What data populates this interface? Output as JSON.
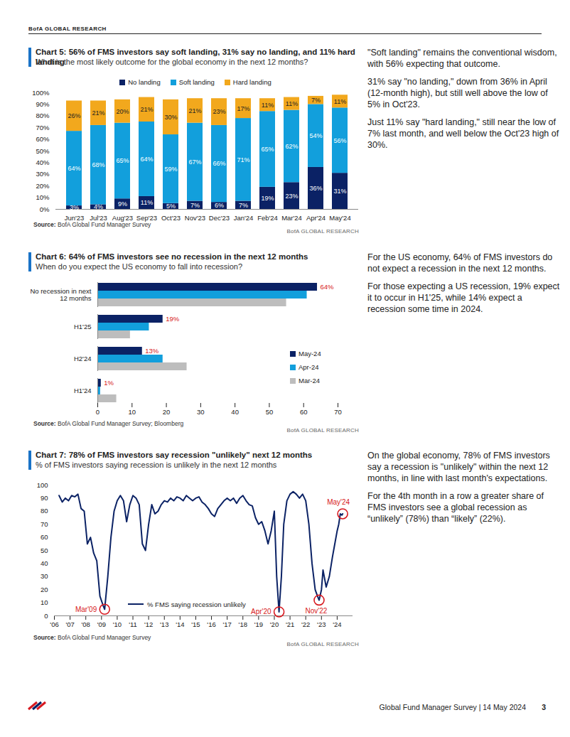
{
  "page": {
    "header": "BofA GLOBAL RESEARCH",
    "footer": "Global Fund Manager Survey | 14 May 2024",
    "page_number": 3,
    "commentary": [
      [
        "\"Soft landing\" remains the conventional wisdom, with 56% expecting that outcome.",
        "31% say \"no landing,\" down from 36% in April (12-month high), but still well above the low of 5% in Oct'23.",
        "Just 11% say \"hard landing,\" still near the low of 7% last month, and well below the Oct'23 high of 30%."
      ],
      [
        "For the US economy, 64% of FMS investors do not expect a recession in the next 12 months.",
        "For those expecting a US recession, 19% expect it to occur in H1'25, while 14% expect a recession some time in 2024."
      ],
      [
        "On the global economy, 78% of FMS investors say a recession is \"unlikely\" within the next 12 months, in line with last month's expectations.",
        "For the 4th month in a row a greater share of FMS investors see a global recession as “unlikely” (78%) than “likely” (22%)."
      ]
    ]
  },
  "chart_data": [
    {
      "type": "bar",
      "stacked": true,
      "title": "Chart 5: 56% of FMS investors say soft landing, 31% say no landing, and 11% hard landing",
      "subtitle": "What is the most likely outcome for the global economy in the next 12 months?",
      "source": "Source: BofA Global Fund Manager Survey",
      "credit": "BofA GLOBAL RESEARCH",
      "legend": "top",
      "data_labels": true,
      "categories": [
        "Jun'23",
        "Jul'23",
        "Aug'23",
        "Sep'23",
        "Oct'23",
        "Nov'23",
        "Dec'23",
        "Jan'24",
        "Feb'24",
        "Mar'24",
        "Apr'24",
        "May'24"
      ],
      "series": [
        {
          "name": "No landing",
          "color": "#0b2265",
          "values": [
            3,
            4,
            9,
            11,
            5,
            7,
            6,
            7,
            19,
            23,
            36,
            31
          ],
          "value_labels": [
            "3%",
            "4%",
            "9%",
            "11%",
            "5%",
            "7%",
            "6%",
            "7%",
            "19%",
            "23%",
            "36%",
            "31%"
          ]
        },
        {
          "name": "Soft landing",
          "color": "#129fdc",
          "values": [
            64,
            68,
            65,
            64,
            59,
            67,
            66,
            71,
            65,
            62,
            54,
            56
          ],
          "value_labels": [
            "64%",
            "68%",
            "65%",
            "64%",
            "59%",
            "67%",
            "66%",
            "71%",
            "65%",
            "62%",
            "54%",
            "56%"
          ]
        },
        {
          "name": "Hard landing",
          "color": "#f2a81d",
          "values": [
            26,
            21,
            20,
            21,
            30,
            21,
            23,
            17,
            11,
            11,
            7,
            11
          ],
          "value_labels": [
            "26%",
            "21%",
            "20%",
            "21%",
            "30%",
            "21%",
            "23%",
            "17%",
            "11%",
            "11%",
            "7%",
            "11%"
          ]
        }
      ],
      "ylim": [
        0,
        100
      ],
      "yticks": [
        {
          "value": 0,
          "label": "0%"
        },
        {
          "value": 10,
          "label": "10%"
        },
        {
          "value": 20,
          "label": "20%"
        },
        {
          "value": 30,
          "label": "30%"
        },
        {
          "value": 40,
          "label": "40%"
        },
        {
          "value": 50,
          "label": "50%"
        },
        {
          "value": 60,
          "label": "60%"
        },
        {
          "value": 70,
          "label": "70%"
        },
        {
          "value": 80,
          "label": "80%"
        },
        {
          "value": 90,
          "label": "90%"
        },
        {
          "value": 100,
          "label": "100%"
        }
      ],
      "grid": false
    },
    {
      "type": "bar",
      "orientation": "horizontal",
      "title": "Chart 6: 64% of FMS investors see no recession in the next 12 months",
      "subtitle": "When do you expect the US economy to fall into recession?",
      "source": "Source: BofA Global Fund Manager Survey; Bloomberg",
      "credit": "BofA GLOBAL RESEARCH",
      "legend": "right",
      "categories": [
        "No recession in next 12 months",
        "H1'25",
        "H2'24",
        "H1'24"
      ],
      "series": [
        {
          "name": "May-24",
          "color": "#0b2265",
          "values": [
            64,
            19,
            13,
            1
          ],
          "data_labels": true,
          "value_labels": [
            "64%",
            "19%",
            "13%",
            "1%"
          ]
        },
        {
          "name": "Apr-24",
          "color": "#129fdc",
          "values": [
            61,
            15,
            19,
            0.8
          ]
        },
        {
          "name": "Mar-24",
          "color": "#bdbdbd",
          "values": [
            55,
            9.5,
            26,
            5.5
          ]
        }
      ],
      "xlim": [
        0,
        70
      ],
      "xticks": [
        0,
        10,
        20,
        30,
        40,
        50,
        60,
        70
      ],
      "grid": false
    },
    {
      "type": "line",
      "title": "Chart 7: 78% of FMS investors say recession \"unlikely\" next 12 months",
      "subtitle": "% of FMS investors saying recession is unlikely in the next 12 months",
      "source": "Source: BofA Global Fund Manager Survey",
      "credit": "BofA GLOBAL RESEARCH",
      "legend": "bottom",
      "x": [
        2006.3,
        2006.5,
        2006.7,
        2006.9,
        2007.1,
        2007.3,
        2007.5,
        2007.7,
        2007.9,
        2008.1,
        2008.3,
        2008.5,
        2008.7,
        2008.9,
        2009.1,
        2009.2,
        2009.4,
        2009.6,
        2009.8,
        2010.0,
        2010.2,
        2010.4,
        2010.6,
        2010.8,
        2011.0,
        2011.2,
        2011.4,
        2011.6,
        2011.8,
        2012.0,
        2012.2,
        2012.4,
        2012.6,
        2012.8,
        2013.0,
        2013.2,
        2013.4,
        2013.6,
        2013.8,
        2014.0,
        2014.2,
        2014.4,
        2014.6,
        2014.8,
        2015.0,
        2015.2,
        2015.4,
        2015.6,
        2015.8,
        2016.0,
        2016.2,
        2016.4,
        2016.6,
        2016.8,
        2017.0,
        2017.2,
        2017.4,
        2017.6,
        2017.8,
        2018.0,
        2018.2,
        2018.4,
        2018.6,
        2018.8,
        2019.0,
        2019.2,
        2019.4,
        2019.6,
        2019.8,
        2020.0,
        2020.15,
        2020.3,
        2020.45,
        2020.6,
        2020.8,
        2021.0,
        2021.2,
        2021.4,
        2021.6,
        2021.8,
        2022.0,
        2022.2,
        2022.4,
        2022.6,
        2022.75,
        2022.85,
        2023.0,
        2023.1,
        2023.3,
        2023.5,
        2023.7,
        2023.85,
        2024.0,
        2024.1,
        2024.2,
        2024.3,
        2024.35
      ],
      "series": [
        {
          "name": "% FMS saying recession unlikely",
          "color": "#0b2265",
          "values": [
            92,
            87,
            90,
            88,
            92,
            91,
            93,
            82,
            80,
            55,
            60,
            48,
            42,
            15,
            8,
            5,
            30,
            60,
            80,
            88,
            92,
            88,
            72,
            85,
            92,
            90,
            85,
            55,
            50,
            70,
            85,
            78,
            80,
            85,
            88,
            87,
            90,
            88,
            91,
            90,
            88,
            92,
            90,
            88,
            90,
            91,
            87,
            85,
            82,
            78,
            76,
            82,
            85,
            88,
            90,
            88,
            90,
            86,
            90,
            92,
            88,
            85,
            84,
            75,
            70,
            72,
            65,
            55,
            65,
            80,
            30,
            3,
            30,
            70,
            88,
            93,
            95,
            93,
            90,
            93,
            88,
            70,
            40,
            20,
            15,
            12,
            20,
            35,
            22,
            30,
            45,
            55,
            65,
            70,
            78,
            77,
            78
          ]
        }
      ],
      "annotations": [
        {
          "text": "Mar'09",
          "x": 2009.2,
          "y": 5,
          "color": "#d71920"
        },
        {
          "text": "Apr'20",
          "x": 2020.3,
          "y": 3,
          "color": "#d71920"
        },
        {
          "text": "Nov'22",
          "x": 2022.85,
          "y": 12,
          "color": "#d71920"
        },
        {
          "text": "May'24",
          "x": 2024.35,
          "y": 78,
          "color": "#d71920"
        }
      ],
      "xlim": [
        2006,
        2025
      ],
      "xticks": [
        {
          "value": 2006,
          "label": "'06"
        },
        {
          "value": 2007,
          "label": "'07"
        },
        {
          "value": 2008,
          "label": "'08"
        },
        {
          "value": 2009,
          "label": "'09"
        },
        {
          "value": 2010,
          "label": "'10"
        },
        {
          "value": 2011,
          "label": "'11"
        },
        {
          "value": 2012,
          "label": "'12"
        },
        {
          "value": 2013,
          "label": "'13"
        },
        {
          "value": 2014,
          "label": "'14"
        },
        {
          "value": 2015,
          "label": "'15"
        },
        {
          "value": 2016,
          "label": "'16"
        },
        {
          "value": 2017,
          "label": "'17"
        },
        {
          "value": 2018,
          "label": "'18"
        },
        {
          "value": 2019,
          "label": "'19"
        },
        {
          "value": 2020,
          "label": "'20"
        },
        {
          "value": 2021,
          "label": "'21"
        },
        {
          "value": 2022,
          "label": "'22"
        },
        {
          "value": 2023,
          "label": "'23"
        },
        {
          "value": 2024,
          "label": "'24"
        }
      ],
      "ylim": [
        0,
        100
      ],
      "yticks": [
        0,
        10,
        20,
        30,
        40,
        50,
        60,
        70,
        80,
        90,
        100
      ],
      "grid": false
    }
  ]
}
